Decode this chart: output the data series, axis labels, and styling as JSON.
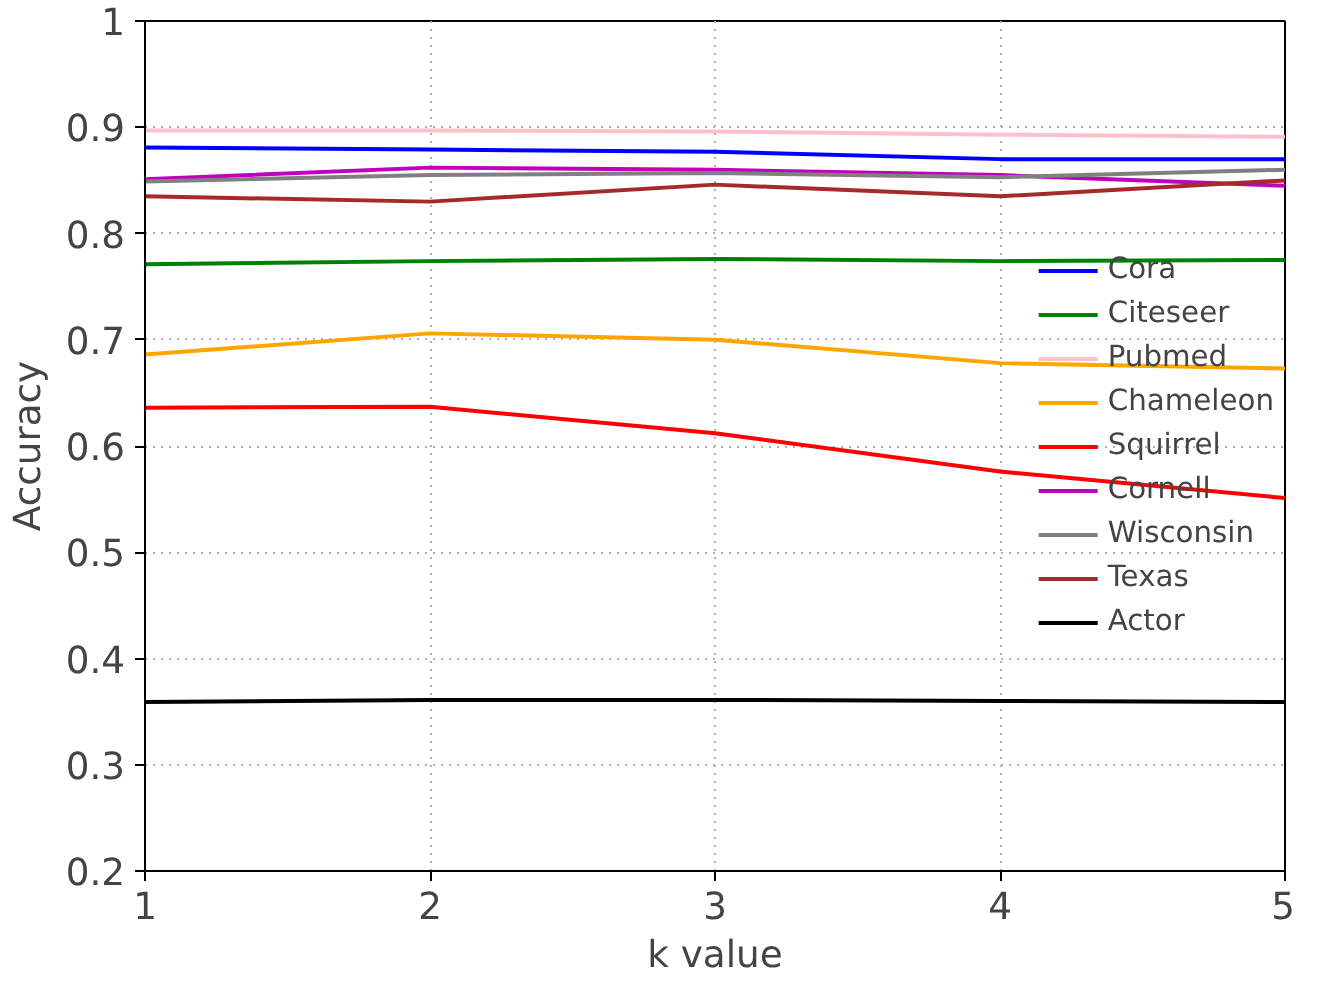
{
  "chart_data": {
    "type": "line",
    "xlabel": "k value",
    "ylabel": "Accuracy",
    "x": [
      1,
      2,
      3,
      4,
      5
    ],
    "xlim": [
      1,
      5
    ],
    "xticks": [
      1,
      2,
      3,
      4,
      5
    ],
    "ylim": [
      0.2,
      1.0
    ],
    "yticks": [
      0.2,
      0.3,
      0.4,
      0.5,
      0.6,
      0.7,
      0.8,
      0.9,
      1.0
    ],
    "grid": true,
    "legend": "center right",
    "line_style": "solid",
    "marker": "none",
    "series": [
      {
        "name": "Cora",
        "color": "#0000ff",
        "values": [
          0.881,
          0.879,
          0.877,
          0.87,
          0.87
        ]
      },
      {
        "name": "Citeseer",
        "color": "#008000",
        "values": [
          0.771,
          0.774,
          0.776,
          0.774,
          0.775
        ]
      },
      {
        "name": "Pubmed",
        "color": "#ffc0cb",
        "values": [
          0.897,
          0.897,
          0.896,
          0.893,
          0.891
        ]
      },
      {
        "name": "Chameleon",
        "color": "#ffa500",
        "values": [
          0.686,
          0.706,
          0.7,
          0.678,
          0.673
        ]
      },
      {
        "name": "Squirrel",
        "color": "#ff0000",
        "values": [
          0.636,
          0.637,
          0.612,
          0.576,
          0.551
        ]
      },
      {
        "name": "Cornell",
        "color": "#bf00bf",
        "values": [
          0.851,
          0.862,
          0.86,
          0.855,
          0.845
        ]
      },
      {
        "name": "Wisconsin",
        "color": "#808080",
        "values": [
          0.849,
          0.855,
          0.857,
          0.853,
          0.86
        ]
      },
      {
        "name": "Texas",
        "color": "#a52a2a",
        "values": [
          0.835,
          0.83,
          0.846,
          0.835,
          0.85
        ]
      },
      {
        "name": "Actor",
        "color": "#000000",
        "values": [
          0.359,
          0.361,
          0.361,
          0.36,
          0.359
        ]
      }
    ]
  }
}
